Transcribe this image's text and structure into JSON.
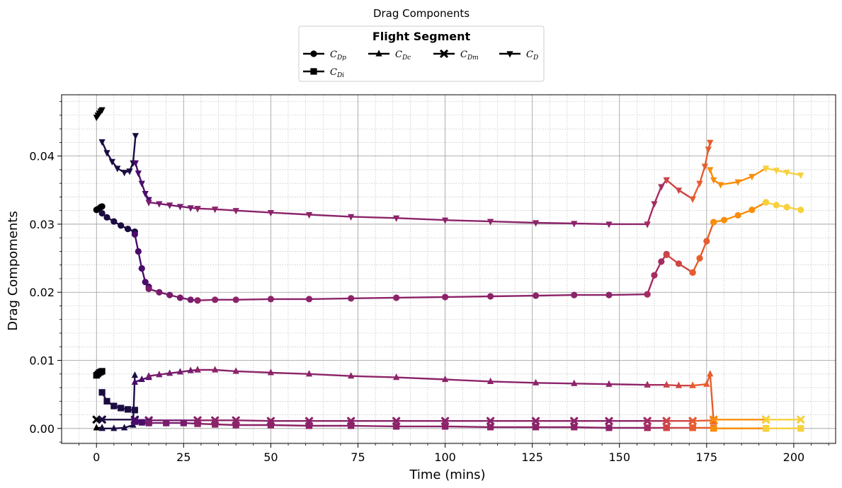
{
  "chart_data": {
    "type": "line",
    "title": "Drag Components",
    "xlabel": "Time (mins)",
    "ylabel": "Drag Compoments",
    "xlim": [
      -10,
      212
    ],
    "ylim": [
      -0.0022,
      0.049
    ],
    "xticks": [
      0,
      25,
      50,
      75,
      100,
      125,
      150,
      175,
      200
    ],
    "xtick_labels": [
      "0",
      "25",
      "50",
      "75",
      "100",
      "125",
      "150",
      "175",
      "200"
    ],
    "yticks": [
      0.0,
      0.01,
      0.02,
      0.03,
      0.04
    ],
    "ytick_labels": [
      "0.00",
      "0.01",
      "0.02",
      "0.03",
      "0.04"
    ],
    "grid": true,
    "legend": {
      "title": "Flight Segment",
      "placement": "top-center, above plot",
      "entries": [
        {
          "base": "C",
          "sub": "Dp",
          "marker": "circle"
        },
        {
          "base": "C",
          "sub": "Dc",
          "marker": "triangle-up"
        },
        {
          "base": "C",
          "sub": "Dm",
          "marker": "x"
        },
        {
          "base": "C",
          "sub": "D",
          "marker": "triangle-down"
        },
        {
          "base": "C",
          "sub": "Di",
          "marker": "square"
        }
      ]
    },
    "segment_colors": [
      "#000004",
      "#1b0c41",
      "#4a0c6b",
      "#781c6d",
      "#8c2369",
      "#a52c60",
      "#cf4446",
      "#e65d2f",
      "#f98e09",
      "#f7d13d"
    ],
    "series": [
      {
        "label": "C_Dp",
        "marker": "circle",
        "segments": [
          {
            "color": 0,
            "x": [
              0,
              0.4,
              0.8,
              1.2,
              1.6
            ],
            "y": [
              0.0321,
              0.0322,
              0.0323,
              0.0325,
              0.0326
            ]
          },
          {
            "color": 1,
            "x": [
              1.6,
              3,
              5,
              7,
              9,
              11
            ],
            "y": [
              0.0316,
              0.031,
              0.0304,
              0.0298,
              0.0293,
              0.0289
            ]
          },
          {
            "color": 2,
            "x": [
              11,
              12,
              13,
              14,
              15
            ],
            "y": [
              0.0285,
              0.026,
              0.0235,
              0.0215,
              0.0208
            ]
          },
          {
            "color": 3,
            "x": [
              15,
              18,
              21,
              24,
              27,
              29
            ],
            "y": [
              0.0205,
              0.02,
              0.0196,
              0.0192,
              0.0189,
              0.0188
            ]
          },
          {
            "color": 4,
            "x": [
              29,
              34,
              40,
              50,
              61,
              73,
              86,
              100,
              113,
              126,
              137,
              147,
              158
            ],
            "y": [
              0.0188,
              0.0189,
              0.0189,
              0.019,
              0.019,
              0.0191,
              0.0192,
              0.0193,
              0.0194,
              0.0195,
              0.0196,
              0.0196,
              0.0197
            ]
          },
          {
            "color": 5,
            "x": [
              158,
              160,
              162,
              163.5
            ],
            "y": [
              0.0197,
              0.0225,
              0.0245,
              0.0256
            ]
          },
          {
            "color": 6,
            "x": [
              163.5,
              167,
              171
            ],
            "y": [
              0.0255,
              0.0242,
              0.0229
            ]
          },
          {
            "color": 7,
            "x": [
              171,
              173,
              175,
              177
            ],
            "y": [
              0.0229,
              0.025,
              0.0275,
              0.0303
            ]
          },
          {
            "color": 8,
            "x": [
              177,
              180,
              184,
              188,
              192
            ],
            "y": [
              0.0303,
              0.0306,
              0.0313,
              0.0321,
              0.0332
            ]
          },
          {
            "color": 9,
            "x": [
              192,
              195,
              198,
              202
            ],
            "y": [
              0.0332,
              0.0328,
              0.0325,
              0.0321
            ]
          }
        ]
      },
      {
        "label": "C_D",
        "marker": "triangle-down",
        "segments": [
          {
            "color": 0,
            "x": [
              0,
              0.4,
              0.8,
              1.2,
              1.6
            ],
            "y": [
              0.0457,
              0.046,
              0.0463,
              0.0466,
              0.0468
            ]
          },
          {
            "color": 1,
            "x": [
              1.6,
              3,
              4.5,
              6,
              8,
              9.5,
              10.5,
              11.2
            ],
            "y": [
              0.0421,
              0.0405,
              0.0392,
              0.0382,
              0.0376,
              0.0378,
              0.039,
              0.043
            ]
          },
          {
            "color": 2,
            "x": [
              11.2,
              12,
              13,
              14,
              15
            ],
            "y": [
              0.039,
              0.0375,
              0.036,
              0.0345,
              0.0336
            ]
          },
          {
            "color": 3,
            "x": [
              15,
              18,
              21,
              24,
              27,
              29
            ],
            "y": [
              0.0332,
              0.033,
              0.0328,
              0.0326,
              0.0324,
              0.0323
            ]
          },
          {
            "color": 4,
            "x": [
              29,
              34,
              40,
              50,
              61,
              73,
              86,
              100,
              113,
              126,
              137,
              147,
              158
            ],
            "y": [
              0.0323,
              0.0322,
              0.032,
              0.0317,
              0.0314,
              0.0311,
              0.0309,
              0.0306,
              0.0304,
              0.0302,
              0.0301,
              0.03,
              0.03
            ]
          },
          {
            "color": 5,
            "x": [
              158,
              160,
              162,
              163.5
            ],
            "y": [
              0.03,
              0.033,
              0.0355,
              0.0365
            ]
          },
          {
            "color": 6,
            "x": [
              163.5,
              167,
              171
            ],
            "y": [
              0.0365,
              0.035,
              0.0337
            ]
          },
          {
            "color": 7,
            "x": [
              171,
              173,
              174.5,
              175.5,
              176
            ],
            "y": [
              0.0337,
              0.036,
              0.0385,
              0.041,
              0.042
            ]
          },
          {
            "color": 8,
            "x": [
              176,
              177,
              179,
              184,
              188,
              192
            ],
            "y": [
              0.038,
              0.0365,
              0.0358,
              0.0362,
              0.037,
              0.0382
            ]
          },
          {
            "color": 9,
            "x": [
              192,
              195,
              198,
              202
            ],
            "y": [
              0.0382,
              0.0379,
              0.0376,
              0.0372
            ]
          }
        ]
      },
      {
        "label": "C_Dc",
        "marker": "triangle-up",
        "segments": [
          {
            "color": 0,
            "x": [
              0,
              1.6
            ],
            "y": [
              0.0001,
              0.0001
            ]
          },
          {
            "color": 1,
            "x": [
              1.6,
              5,
              8,
              10.5,
              11
            ],
            "y": [
              0.0,
              0.0,
              0.0001,
              0.0005,
              0.0078
            ]
          },
          {
            "color": 2,
            "x": [
              11,
              13,
              15
            ],
            "y": [
              0.0068,
              0.0072,
              0.0075
            ]
          },
          {
            "color": 3,
            "x": [
              15,
              18,
              21,
              24,
              27,
              29
            ],
            "y": [
              0.0077,
              0.0079,
              0.0081,
              0.0083,
              0.0085,
              0.0086
            ]
          },
          {
            "color": 4,
            "x": [
              29,
              34,
              40,
              50,
              61,
              73,
              86,
              100,
              113,
              126,
              137,
              147,
              158
            ],
            "y": [
              0.0086,
              0.0086,
              0.0084,
              0.0082,
              0.008,
              0.0077,
              0.0075,
              0.0072,
              0.0069,
              0.0067,
              0.0066,
              0.0065,
              0.0064
            ]
          },
          {
            "color": 5,
            "x": [
              158,
              163.5
            ],
            "y": [
              0.0064,
              0.0064
            ]
          },
          {
            "color": 6,
            "x": [
              163.5,
              167,
              171
            ],
            "y": [
              0.0064,
              0.0063,
              0.0063
            ]
          },
          {
            "color": 7,
            "x": [
              171,
              175,
              176,
              177
            ],
            "y": [
              0.0063,
              0.0065,
              0.008,
              0.001
            ]
          },
          {
            "color": 8,
            "x": [
              177,
              192
            ],
            "y": [
              0.0,
              0.0
            ]
          },
          {
            "color": 9,
            "x": [
              192,
              202
            ],
            "y": [
              0.0,
              0.0
            ]
          }
        ]
      },
      {
        "label": "C_Dm",
        "marker": "x",
        "segments": [
          {
            "color": 0,
            "x": [
              0,
              1.6
            ],
            "y": [
              0.0013,
              0.0013
            ]
          },
          {
            "color": 1,
            "x": [
              1.6,
              11
            ],
            "y": [
              0.0013,
              0.0013
            ]
          },
          {
            "color": 2,
            "x": [
              11,
              15
            ],
            "y": [
              0.0012,
              0.0012
            ]
          },
          {
            "color": 3,
            "x": [
              15,
              29
            ],
            "y": [
              0.0012,
              0.0012
            ]
          },
          {
            "color": 4,
            "x": [
              29,
              34,
              40,
              50,
              61,
              73,
              86,
              100,
              113,
              126,
              137,
              147,
              158
            ],
            "y": [
              0.0012,
              0.0012,
              0.0012,
              0.0011,
              0.0011,
              0.0011,
              0.0011,
              0.0011,
              0.0011,
              0.0011,
              0.0011,
              0.0011,
              0.0011
            ]
          },
          {
            "color": 5,
            "x": [
              158,
              163.5
            ],
            "y": [
              0.0011,
              0.0011
            ]
          },
          {
            "color": 6,
            "x": [
              163.5,
              171
            ],
            "y": [
              0.0011,
              0.0011
            ]
          },
          {
            "color": 7,
            "x": [
              171,
              177
            ],
            "y": [
              0.0011,
              0.0012
            ]
          },
          {
            "color": 8,
            "x": [
              177,
              192
            ],
            "y": [
              0.0013,
              0.0013
            ]
          },
          {
            "color": 9,
            "x": [
              192,
              202
            ],
            "y": [
              0.0013,
              0.0013
            ]
          }
        ]
      },
      {
        "label": "C_Di",
        "marker": "square",
        "segments": [
          {
            "color": 0,
            "x": [
              0,
              0.4,
              0.8,
              1.2,
              1.6
            ],
            "y": [
              0.0078,
              0.008,
              0.0082,
              0.0083,
              0.0084
            ]
          },
          {
            "color": 1,
            "x": [
              1.6,
              3,
              5,
              7,
              9,
              11
            ],
            "y": [
              0.0053,
              0.004,
              0.0033,
              0.003,
              0.0028,
              0.0027
            ]
          },
          {
            "color": 2,
            "x": [
              11,
              13,
              15
            ],
            "y": [
              0.001,
              0.0009,
              0.0009
            ]
          },
          {
            "color": 3,
            "x": [
              15,
              20,
              25,
              29
            ],
            "y": [
              0.0008,
              0.0008,
              0.0008,
              0.0007
            ]
          },
          {
            "color": 4,
            "x": [
              29,
              34,
              40,
              50,
              61,
              73,
              86,
              100,
              113,
              126,
              137,
              147,
              158
            ],
            "y": [
              0.0007,
              0.0006,
              0.0005,
              0.0005,
              0.0004,
              0.0004,
              0.0003,
              0.0003,
              0.0002,
              0.0002,
              0.0002,
              0.0001,
              0.0001
            ]
          },
          {
            "color": 5,
            "x": [
              158,
              163.5
            ],
            "y": [
              0.0001,
              0.0001
            ]
          },
          {
            "color": 6,
            "x": [
              163.5,
              171
            ],
            "y": [
              0.0001,
              0.0001
            ]
          },
          {
            "color": 7,
            "x": [
              171,
              177
            ],
            "y": [
              0.0001,
              0.0001
            ]
          },
          {
            "color": 8,
            "x": [
              177,
              192
            ],
            "y": [
              0.0,
              0.0
            ]
          },
          {
            "color": 9,
            "x": [
              192,
              202
            ],
            "y": [
              0.0,
              0.0
            ]
          }
        ]
      }
    ]
  }
}
